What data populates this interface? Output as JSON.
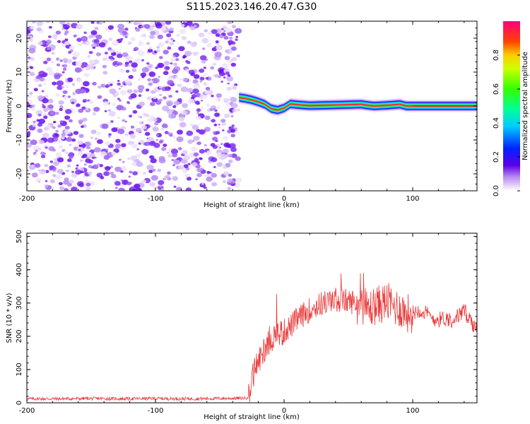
{
  "title": "S115.2023.146.20.47.G30",
  "chart_data": [
    {
      "id": "spectrogram",
      "type": "heatmap",
      "xlabel": "Height of straight line (km)",
      "ylabel": "Frequency (Hz)",
      "xlim": [
        -200,
        150
      ],
      "ylim": [
        -25,
        25
      ],
      "xticks": [
        -200,
        -100,
        0,
        100
      ],
      "yticks": [
        -20,
        -10,
        0,
        10,
        20
      ],
      "noise_region_x": [
        -200,
        -35
      ],
      "signal_track": [
        {
          "x": -35,
          "y": 2.5
        },
        {
          "x": -30,
          "y": 2.2
        },
        {
          "x": -25,
          "y": 1.8
        },
        {
          "x": -20,
          "y": 1.2
        },
        {
          "x": -15,
          "y": 0.5
        },
        {
          "x": -10,
          "y": -0.8
        },
        {
          "x": -5,
          "y": -1.2
        },
        {
          "x": 0,
          "y": -0.6
        },
        {
          "x": 5,
          "y": 0.6
        },
        {
          "x": 10,
          "y": 0.4
        },
        {
          "x": 20,
          "y": 0.1
        },
        {
          "x": 40,
          "y": 0.3
        },
        {
          "x": 60,
          "y": 0.5
        },
        {
          "x": 65,
          "y": 0.2
        },
        {
          "x": 70,
          "y": 0.0
        },
        {
          "x": 80,
          "y": 0.2
        },
        {
          "x": 90,
          "y": 0.5
        },
        {
          "x": 95,
          "y": 0.0
        },
        {
          "x": 100,
          "y": 0.0
        },
        {
          "x": 150,
          "y": 0.0
        }
      ],
      "colorbar": {
        "label": "Normalized spectral amplitude",
        "range": [
          0,
          1
        ],
        "ticks": [
          "0.0",
          "0.2",
          "0.4",
          "0.6",
          "0.8"
        ]
      }
    },
    {
      "id": "snr",
      "type": "line",
      "xlabel": "Height of straight line (km)",
      "ylabel": "SNR (10 * v/v)",
      "xlim": [
        -200,
        150
      ],
      "ylim": [
        0,
        510
      ],
      "xticks": [
        -200,
        -100,
        0,
        100
      ],
      "yticks": [
        0,
        100,
        200,
        300,
        400,
        500
      ],
      "series": [
        {
          "name": "SNR",
          "color": "#e83a3a",
          "points": [
            {
              "x": -200,
              "y": 12
            },
            {
              "x": -175,
              "y": 12
            },
            {
              "x": -150,
              "y": 13
            },
            {
              "x": -125,
              "y": 12
            },
            {
              "x": -100,
              "y": 13
            },
            {
              "x": -75,
              "y": 12
            },
            {
              "x": -50,
              "y": 13
            },
            {
              "x": -30,
              "y": 14
            },
            {
              "x": -27,
              "y": 20
            },
            {
              "x": -25,
              "y": 70
            },
            {
              "x": -22,
              "y": 110
            },
            {
              "x": -18,
              "y": 140
            },
            {
              "x": -14,
              "y": 175
            },
            {
              "x": -10,
              "y": 195
            },
            {
              "x": -5,
              "y": 205
            },
            {
              "x": 0,
              "y": 215
            },
            {
              "x": 5,
              "y": 230
            },
            {
              "x": 10,
              "y": 250
            },
            {
              "x": 15,
              "y": 265
            },
            {
              "x": 20,
              "y": 280
            },
            {
              "x": 25,
              "y": 290
            },
            {
              "x": 30,
              "y": 300
            },
            {
              "x": 40,
              "y": 310
            },
            {
              "x": 50,
              "y": 305
            },
            {
              "x": 60,
              "y": 300
            },
            {
              "x": 65,
              "y": 280
            },
            {
              "x": 70,
              "y": 290
            },
            {
              "x": 80,
              "y": 305
            },
            {
              "x": 85,
              "y": 290
            },
            {
              "x": 90,
              "y": 285
            },
            {
              "x": 95,
              "y": 270
            },
            {
              "x": 100,
              "y": 270
            },
            {
              "x": 105,
              "y": 280
            },
            {
              "x": 110,
              "y": 270
            },
            {
              "x": 115,
              "y": 255
            },
            {
              "x": 120,
              "y": 250
            },
            {
              "x": 125,
              "y": 255
            },
            {
              "x": 130,
              "y": 250
            },
            {
              "x": 135,
              "y": 260
            },
            {
              "x": 140,
              "y": 275
            },
            {
              "x": 145,
              "y": 250
            },
            {
              "x": 150,
              "y": 215
            }
          ]
        }
      ]
    }
  ]
}
